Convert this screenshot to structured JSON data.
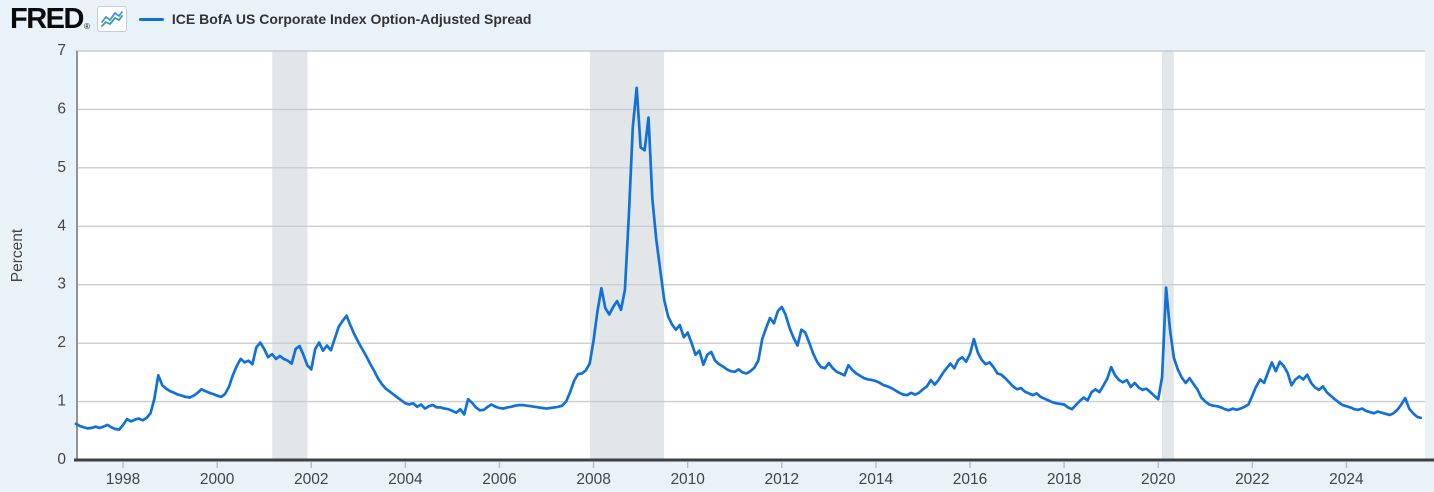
{
  "header": {
    "logo_text": "FRED",
    "registered_mark": "®",
    "legend_label": "ICE BofA US Corporate Index Option-Adjusted Spread"
  },
  "colors": {
    "page_background": "#e9f1f9",
    "plot_background": "#ffffff",
    "series_line": "#1171d9",
    "recession_band": "#e2e6e9",
    "gridline": "#cccccc",
    "axis_line": "#404040",
    "plot_left_border": "#8e9499",
    "tick_mark": "#b3bec7",
    "axis_text": "#444444",
    "icon_blue": "#4a90d9",
    "icon_teal": "#31a38f"
  },
  "chart_data": {
    "type": "line",
    "title": "ICE BofA US Corporate Index Option-Adjusted Spread",
    "ylabel": "Percent",
    "ylim": [
      0,
      7
    ],
    "yticks": [
      0,
      1,
      2,
      3,
      4,
      5,
      6,
      7
    ],
    "xticks": [
      1998,
      2000,
      2002,
      2004,
      2006,
      2008,
      2010,
      2012,
      2014,
      2016,
      2018,
      2020,
      2022,
      2024
    ],
    "x_range_years": [
      1997.0,
      2025.67
    ],
    "grid": true,
    "legend_position": "top-left",
    "frequency": "monthly",
    "start": "1997-01",
    "recession_bands": [
      [
        2001.17,
        2001.92
      ],
      [
        2007.92,
        2009.5
      ],
      [
        2020.08,
        2020.33
      ]
    ],
    "series": [
      {
        "name": "ICE BofA US Corporate Index Option-Adjusted Spread",
        "unit": "Percent",
        "values": [
          0.62,
          0.58,
          0.56,
          0.54,
          0.55,
          0.57,
          0.55,
          0.57,
          0.6,
          0.56,
          0.53,
          0.52,
          0.6,
          0.7,
          0.66,
          0.69,
          0.71,
          0.68,
          0.72,
          0.8,
          1.05,
          1.45,
          1.28,
          1.22,
          1.18,
          1.15,
          1.12,
          1.1,
          1.08,
          1.07,
          1.1,
          1.15,
          1.21,
          1.18,
          1.15,
          1.13,
          1.1,
          1.08,
          1.13,
          1.25,
          1.45,
          1.61,
          1.73,
          1.67,
          1.7,
          1.64,
          1.93,
          2.01,
          1.9,
          1.76,
          1.81,
          1.73,
          1.78,
          1.73,
          1.7,
          1.65,
          1.9,
          1.95,
          1.8,
          1.62,
          1.55,
          1.9,
          2.01,
          1.87,
          1.96,
          1.88,
          2.08,
          2.28,
          2.38,
          2.47,
          2.3,
          2.15,
          2.02,
          1.9,
          1.78,
          1.65,
          1.53,
          1.4,
          1.3,
          1.22,
          1.17,
          1.12,
          1.07,
          1.02,
          0.97,
          0.95,
          0.97,
          0.91,
          0.95,
          0.88,
          0.92,
          0.94,
          0.9,
          0.9,
          0.88,
          0.87,
          0.84,
          0.81,
          0.87,
          0.78,
          1.04,
          0.98,
          0.9,
          0.85,
          0.86,
          0.91,
          0.95,
          0.91,
          0.89,
          0.88,
          0.9,
          0.91,
          0.93,
          0.94,
          0.94,
          0.93,
          0.92,
          0.91,
          0.9,
          0.89,
          0.88,
          0.89,
          0.9,
          0.91,
          0.93,
          1.0,
          1.16,
          1.35,
          1.47,
          1.48,
          1.53,
          1.65,
          2.05,
          2.55,
          2.94,
          2.6,
          2.49,
          2.62,
          2.72,
          2.57,
          2.91,
          4.2,
          5.7,
          6.37,
          5.35,
          5.3,
          5.86,
          4.46,
          3.77,
          3.26,
          2.74,
          2.46,
          2.32,
          2.23,
          2.31,
          2.1,
          2.18,
          2.0,
          1.8,
          1.87,
          1.63,
          1.8,
          1.85,
          1.7,
          1.64,
          1.6,
          1.55,
          1.52,
          1.51,
          1.55,
          1.5,
          1.48,
          1.52,
          1.58,
          1.7,
          2.07,
          2.26,
          2.43,
          2.34,
          2.55,
          2.62,
          2.48,
          2.26,
          2.09,
          1.96,
          2.23,
          2.18,
          2.01,
          1.82,
          1.68,
          1.59,
          1.57,
          1.66,
          1.57,
          1.51,
          1.48,
          1.45,
          1.62,
          1.54,
          1.48,
          1.44,
          1.4,
          1.38,
          1.37,
          1.35,
          1.32,
          1.28,
          1.26,
          1.23,
          1.19,
          1.15,
          1.12,
          1.11,
          1.15,
          1.12,
          1.15,
          1.21,
          1.26,
          1.37,
          1.29,
          1.37,
          1.48,
          1.57,
          1.65,
          1.57,
          1.71,
          1.76,
          1.68,
          1.82,
          2.07,
          1.84,
          1.71,
          1.64,
          1.67,
          1.59,
          1.48,
          1.46,
          1.4,
          1.33,
          1.26,
          1.21,
          1.23,
          1.17,
          1.14,
          1.11,
          1.14,
          1.08,
          1.05,
          1.02,
          0.99,
          0.97,
          0.96,
          0.95,
          0.9,
          0.87,
          0.94,
          1.01,
          1.07,
          1.02,
          1.16,
          1.21,
          1.16,
          1.27,
          1.39,
          1.59,
          1.45,
          1.37,
          1.33,
          1.37,
          1.25,
          1.32,
          1.24,
          1.2,
          1.22,
          1.16,
          1.1,
          1.04,
          1.42,
          2.95,
          2.23,
          1.75,
          1.55,
          1.41,
          1.32,
          1.4,
          1.3,
          1.21,
          1.07,
          1.0,
          0.95,
          0.93,
          0.92,
          0.9,
          0.87,
          0.85,
          0.88,
          0.86,
          0.88,
          0.91,
          0.95,
          1.1,
          1.26,
          1.38,
          1.32,
          1.5,
          1.67,
          1.52,
          1.68,
          1.61,
          1.49,
          1.28,
          1.38,
          1.43,
          1.38,
          1.46,
          1.32,
          1.24,
          1.2,
          1.26,
          1.16,
          1.1,
          1.04,
          0.99,
          0.94,
          0.92,
          0.9,
          0.87,
          0.86,
          0.88,
          0.84,
          0.82,
          0.8,
          0.83,
          0.81,
          0.79,
          0.77,
          0.8,
          0.86,
          0.95,
          1.06,
          0.88,
          0.8,
          0.74,
          0.72
        ]
      }
    ]
  }
}
